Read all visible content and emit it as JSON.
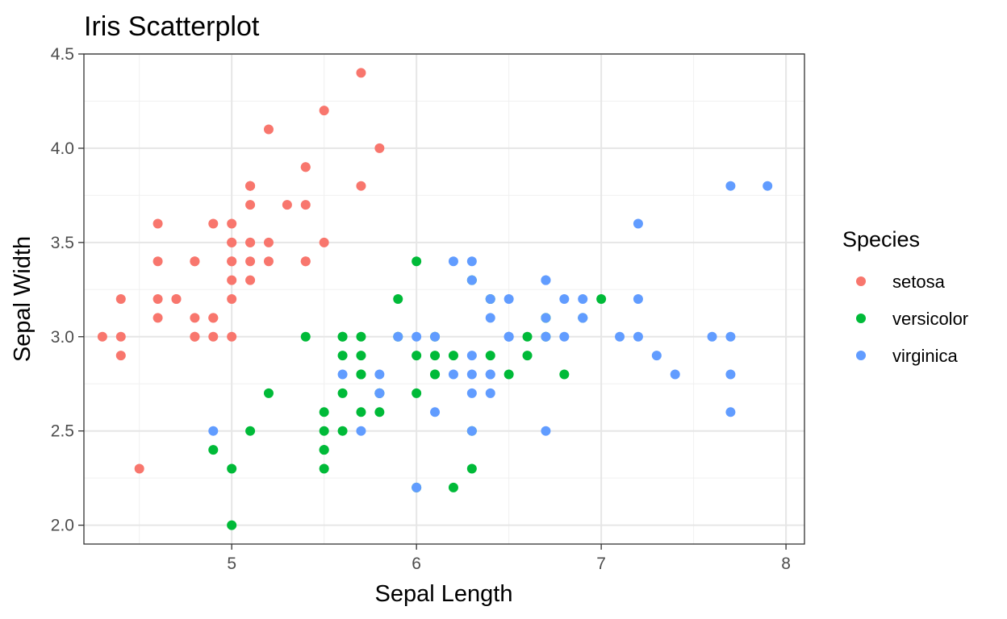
{
  "chart_data": {
    "type": "scatter",
    "title": "Iris Scatterplot",
    "xlabel": "Sepal Length",
    "ylabel": "Sepal Width",
    "xlim": [
      4.2,
      8.1
    ],
    "ylim": [
      1.9,
      4.5
    ],
    "x_ticks": [
      5,
      6,
      7,
      8
    ],
    "y_ticks": [
      2.0,
      2.5,
      3.0,
      3.5,
      4.0,
      4.5
    ],
    "x_tick_labels": [
      "5",
      "6",
      "7",
      "8"
    ],
    "y_tick_labels": [
      "2.0",
      "2.5",
      "3.0",
      "3.5",
      "4.0",
      "4.5"
    ],
    "grid": true,
    "legend": {
      "title": "Species",
      "placement": "right"
    },
    "series": [
      {
        "name": "setosa",
        "color": "#F8766D",
        "points": [
          [
            5.1,
            3.5
          ],
          [
            4.9,
            3.0
          ],
          [
            4.7,
            3.2
          ],
          [
            4.6,
            3.1
          ],
          [
            5.0,
            3.6
          ],
          [
            5.4,
            3.9
          ],
          [
            4.6,
            3.4
          ],
          [
            5.0,
            3.4
          ],
          [
            4.4,
            2.9
          ],
          [
            4.9,
            3.1
          ],
          [
            5.4,
            3.7
          ],
          [
            4.8,
            3.4
          ],
          [
            4.8,
            3.0
          ],
          [
            4.3,
            3.0
          ],
          [
            5.8,
            4.0
          ],
          [
            5.7,
            4.4
          ],
          [
            5.4,
            3.9
          ],
          [
            5.1,
            3.5
          ],
          [
            5.7,
            3.8
          ],
          [
            5.1,
            3.8
          ],
          [
            5.4,
            3.4
          ],
          [
            5.1,
            3.7
          ],
          [
            4.6,
            3.6
          ],
          [
            5.1,
            3.3
          ],
          [
            4.8,
            3.4
          ],
          [
            5.0,
            3.0
          ],
          [
            5.0,
            3.4
          ],
          [
            5.2,
            3.5
          ],
          [
            5.2,
            3.4
          ],
          [
            4.7,
            3.2
          ],
          [
            4.8,
            3.1
          ],
          [
            5.4,
            3.4
          ],
          [
            5.2,
            4.1
          ],
          [
            5.5,
            4.2
          ],
          [
            4.9,
            3.1
          ],
          [
            5.0,
            3.2
          ],
          [
            5.5,
            3.5
          ],
          [
            4.9,
            3.6
          ],
          [
            4.4,
            3.0
          ],
          [
            5.1,
            3.4
          ],
          [
            5.0,
            3.5
          ],
          [
            4.5,
            2.3
          ],
          [
            4.4,
            3.2
          ],
          [
            5.0,
            3.5
          ],
          [
            5.1,
            3.8
          ],
          [
            4.8,
            3.0
          ],
          [
            5.1,
            3.8
          ],
          [
            4.6,
            3.2
          ],
          [
            5.3,
            3.7
          ],
          [
            5.0,
            3.3
          ]
        ]
      },
      {
        "name": "versicolor",
        "color": "#00BA38",
        "points": [
          [
            7.0,
            3.2
          ],
          [
            6.4,
            3.2
          ],
          [
            6.9,
            3.1
          ],
          [
            5.5,
            2.3
          ],
          [
            6.5,
            2.8
          ],
          [
            5.7,
            2.8
          ],
          [
            6.3,
            3.3
          ],
          [
            4.9,
            2.4
          ],
          [
            6.6,
            2.9
          ],
          [
            5.2,
            2.7
          ],
          [
            5.0,
            2.0
          ],
          [
            5.9,
            3.0
          ],
          [
            6.0,
            2.2
          ],
          [
            6.1,
            2.9
          ],
          [
            5.6,
            2.9
          ],
          [
            6.7,
            3.1
          ],
          [
            5.6,
            3.0
          ],
          [
            5.8,
            2.7
          ],
          [
            6.2,
            2.2
          ],
          [
            5.6,
            2.5
          ],
          [
            5.9,
            3.2
          ],
          [
            6.1,
            2.8
          ],
          [
            6.3,
            2.5
          ],
          [
            6.1,
            2.8
          ],
          [
            6.4,
            2.9
          ],
          [
            6.6,
            3.0
          ],
          [
            6.8,
            2.8
          ],
          [
            6.7,
            3.0
          ],
          [
            6.0,
            2.9
          ],
          [
            5.7,
            2.6
          ],
          [
            5.5,
            2.4
          ],
          [
            5.5,
            2.4
          ],
          [
            5.8,
            2.7
          ],
          [
            6.0,
            2.7
          ],
          [
            5.4,
            3.0
          ],
          [
            6.0,
            3.4
          ],
          [
            6.7,
            3.1
          ],
          [
            6.3,
            2.3
          ],
          [
            5.6,
            3.0
          ],
          [
            5.5,
            2.5
          ],
          [
            5.5,
            2.6
          ],
          [
            6.1,
            3.0
          ],
          [
            5.8,
            2.6
          ],
          [
            5.0,
            2.3
          ],
          [
            5.6,
            2.7
          ],
          [
            5.7,
            3.0
          ],
          [
            5.7,
            2.9
          ],
          [
            6.2,
            2.9
          ],
          [
            5.1,
            2.5
          ],
          [
            5.7,
            2.8
          ]
        ]
      },
      {
        "name": "virginica",
        "color": "#619CFF",
        "points": [
          [
            6.3,
            3.3
          ],
          [
            5.8,
            2.7
          ],
          [
            7.1,
            3.0
          ],
          [
            6.3,
            2.9
          ],
          [
            6.5,
            3.0
          ],
          [
            7.6,
            3.0
          ],
          [
            4.9,
            2.5
          ],
          [
            7.3,
            2.9
          ],
          [
            6.7,
            2.5
          ],
          [
            7.2,
            3.6
          ],
          [
            6.5,
            3.2
          ],
          [
            6.4,
            2.7
          ],
          [
            6.8,
            3.0
          ],
          [
            5.7,
            2.5
          ],
          [
            5.8,
            2.8
          ],
          [
            6.4,
            3.2
          ],
          [
            6.5,
            3.0
          ],
          [
            7.7,
            3.8
          ],
          [
            7.7,
            2.6
          ],
          [
            6.0,
            2.2
          ],
          [
            6.9,
            3.2
          ],
          [
            5.6,
            2.8
          ],
          [
            7.7,
            2.8
          ],
          [
            6.3,
            2.7
          ],
          [
            6.7,
            3.3
          ],
          [
            7.2,
            3.2
          ],
          [
            6.2,
            2.8
          ],
          [
            6.1,
            3.0
          ],
          [
            6.4,
            2.8
          ],
          [
            7.2,
            3.0
          ],
          [
            7.4,
            2.8
          ],
          [
            7.9,
            3.8
          ],
          [
            6.4,
            2.8
          ],
          [
            6.3,
            2.8
          ],
          [
            6.1,
            2.6
          ],
          [
            7.7,
            3.0
          ],
          [
            6.3,
            3.4
          ],
          [
            6.4,
            3.1
          ],
          [
            6.0,
            3.0
          ],
          [
            6.9,
            3.1
          ],
          [
            6.7,
            3.1
          ],
          [
            6.9,
            3.1
          ],
          [
            5.8,
            2.7
          ],
          [
            6.8,
            3.2
          ],
          [
            6.7,
            3.3
          ],
          [
            6.7,
            3.0
          ],
          [
            6.3,
            2.5
          ],
          [
            6.5,
            3.0
          ],
          [
            6.2,
            3.4
          ],
          [
            5.9,
            3.0
          ]
        ]
      }
    ]
  }
}
